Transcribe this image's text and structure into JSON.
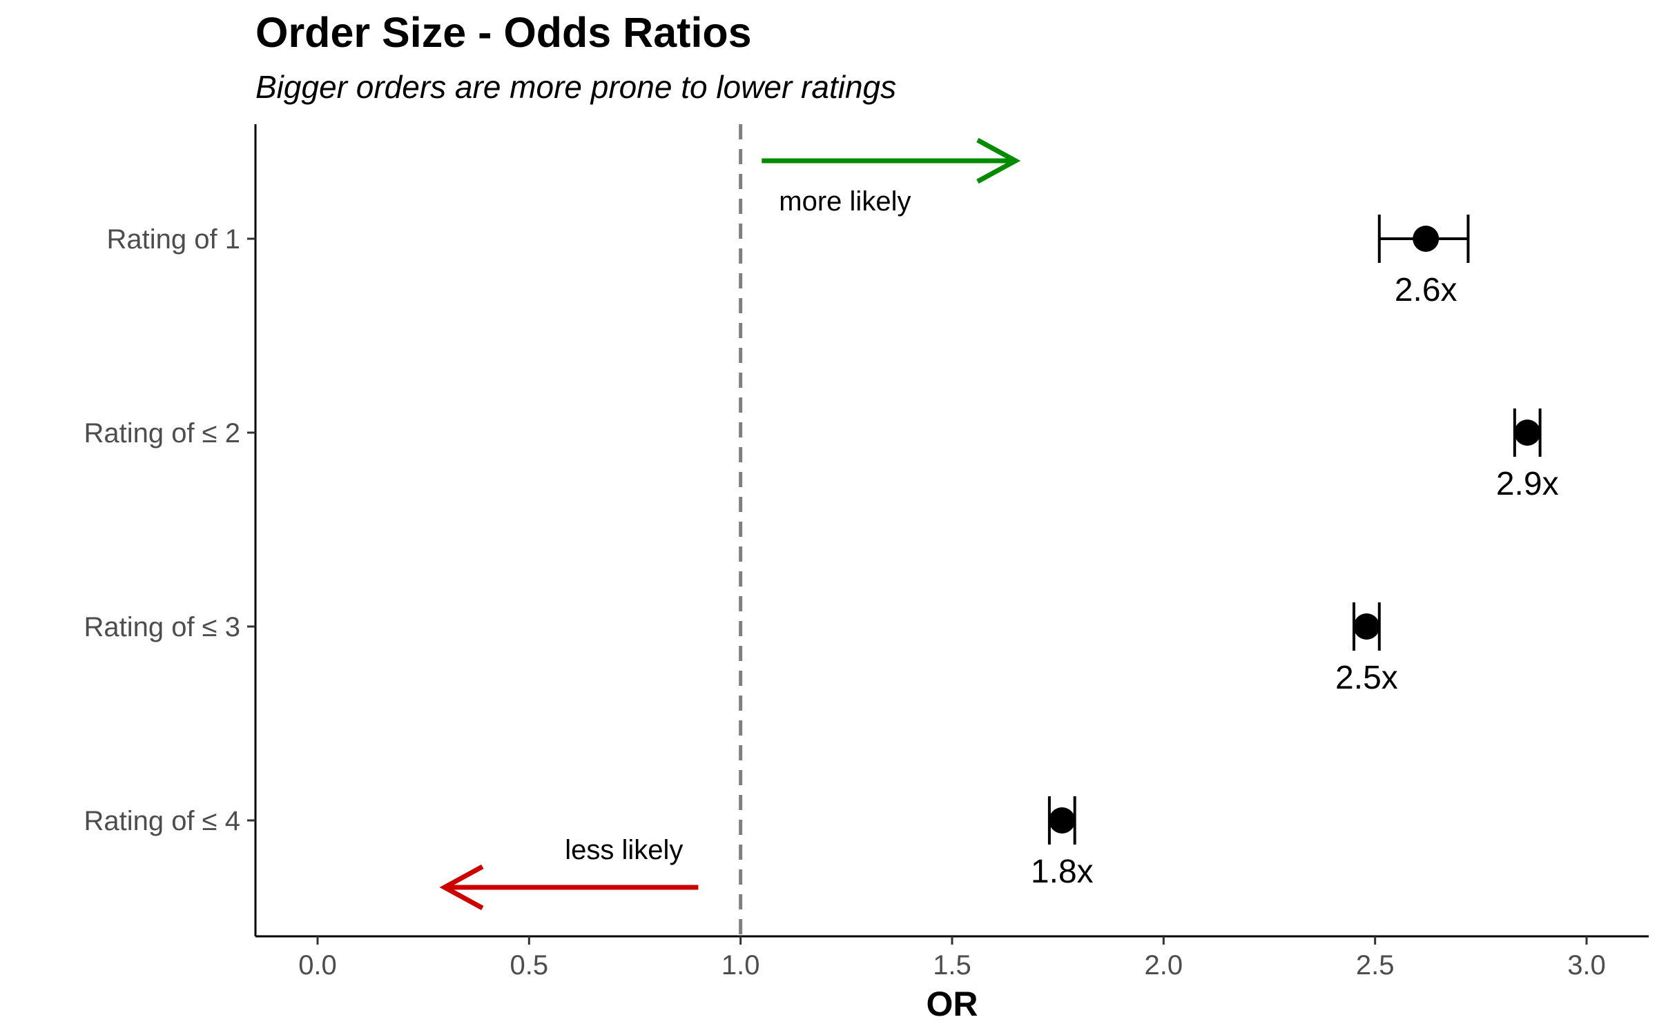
{
  "chart_data": {
    "type": "scatter",
    "title": "Order Size - Odds Ratios",
    "subtitle": "Bigger orders are more prone to lower ratings",
    "xlabel": "OR",
    "ylabel": "",
    "xlim": [
      -0.15,
      3.15
    ],
    "xticks": [
      0.0,
      0.5,
      1.0,
      1.5,
      2.0,
      2.5,
      3.0
    ],
    "xtick_labels": [
      "0.0",
      "0.5",
      "1.0",
      "1.5",
      "2.0",
      "2.5",
      "3.0"
    ],
    "categories": [
      "Rating of 1",
      "Rating of ≤ 2",
      "Rating of ≤ 3",
      "Rating of ≤ 4"
    ],
    "points": [
      {
        "category": "Rating of 1",
        "or": 2.62,
        "ci_low": 2.51,
        "ci_high": 2.72,
        "label": "2.6x"
      },
      {
        "category": "Rating of ≤ 2",
        "or": 2.86,
        "ci_low": 2.83,
        "ci_high": 2.89,
        "label": "2.9x"
      },
      {
        "category": "Rating of ≤ 3",
        "or": 2.48,
        "ci_low": 2.45,
        "ci_high": 2.51,
        "label": "2.5x"
      },
      {
        "category": "Rating of ≤ 4",
        "or": 1.76,
        "ci_low": 1.73,
        "ci_high": 1.79,
        "label": "1.8x"
      }
    ],
    "reference_line": {
      "x": 1.0,
      "style": "dashed",
      "color": "#7f7f7f"
    },
    "annotations": [
      {
        "name": "more-likely",
        "text": "more likely",
        "arrow_from": 1.05,
        "arrow_to": 1.65,
        "direction": "right",
        "color": "#008b00"
      },
      {
        "name": "less-likely",
        "text": "less likely",
        "arrow_from": 0.9,
        "arrow_to": 0.3,
        "direction": "left",
        "color": "#cd0000"
      }
    ],
    "grid": false,
    "legend": "none"
  }
}
